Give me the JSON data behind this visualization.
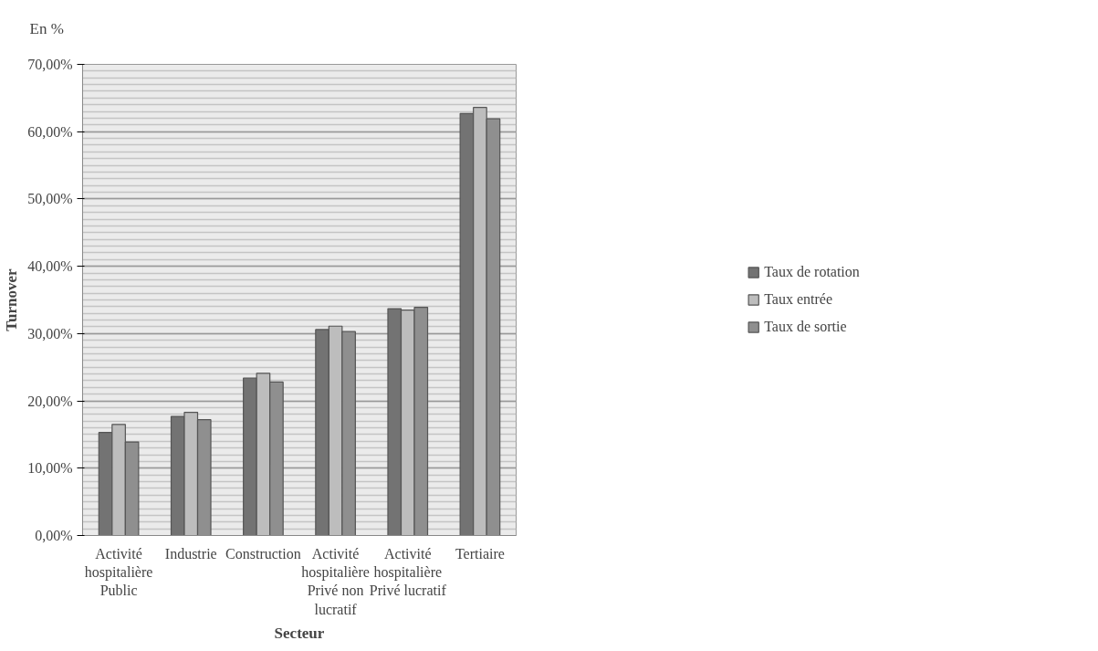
{
  "chart_data": {
    "type": "bar",
    "xlabel": "Secteur",
    "ylabel": "Turnover",
    "annotations": [
      "En %"
    ],
    "categories": [
      "Activité hospitalière Public",
      "Industrie",
      "Construction",
      "Activité hospitalière Privé non lucratif",
      "Activité hospitalière Privé lucratif",
      "Tertiaire"
    ],
    "series": [
      {
        "name": "Taux de rotation",
        "color": "#737373",
        "values": [
          15.3,
          17.7,
          23.4,
          30.6,
          33.7,
          62.7
        ]
      },
      {
        "name": "Taux entrée",
        "color": "#bdbdbd",
        "values": [
          16.5,
          18.3,
          24.1,
          31.1,
          33.5,
          63.6
        ]
      },
      {
        "name": "Taux de sortie",
        "color": "#8f8f8f",
        "values": [
          13.9,
          17.2,
          22.8,
          30.3,
          33.9,
          61.9
        ]
      }
    ],
    "ylim": [
      0,
      70
    ],
    "yticks": [
      {
        "value": 0,
        "label": "0,00%"
      },
      {
        "value": 10,
        "label": "10,00%"
      },
      {
        "value": 20,
        "label": "20,00%"
      },
      {
        "value": 30,
        "label": "30,00%"
      },
      {
        "value": 40,
        "label": "40,00%"
      },
      {
        "value": 50,
        "label": "50,00%"
      },
      {
        "value": 60,
        "label": "60,00%"
      },
      {
        "value": 70,
        "label": "70,00%"
      }
    ],
    "grid": "y",
    "legend": "right"
  }
}
